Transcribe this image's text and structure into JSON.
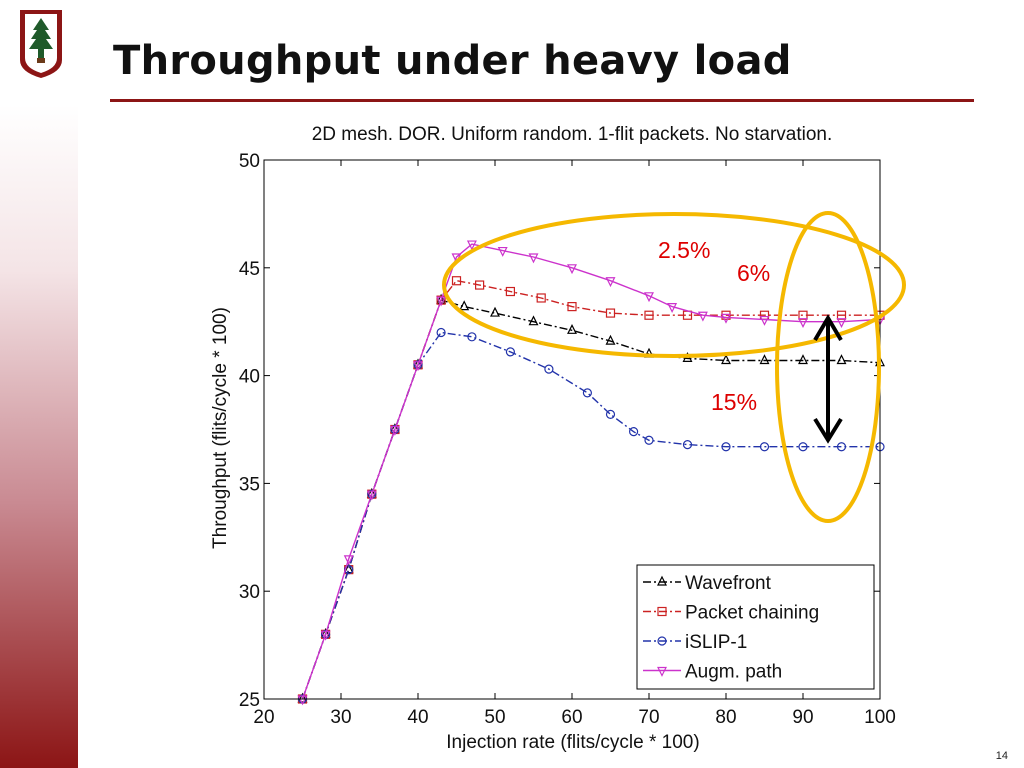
{
  "slide": {
    "title": "Throughput under heavy load",
    "page_number": "14"
  },
  "chart_data": {
    "type": "line",
    "title": "2D mesh. DOR. Uniform random. 1-flit packets. No starvation.",
    "xlabel": "Injection rate (flits/cycle * 100)",
    "ylabel": "Throughput (flits/cycle * 100)",
    "xlim": [
      20,
      100
    ],
    "ylim": [
      25,
      50
    ],
    "xticks": [
      20,
      30,
      40,
      50,
      60,
      70,
      80,
      90,
      100
    ],
    "yticks": [
      25,
      30,
      35,
      40,
      45,
      50
    ],
    "legend_position": "bottom-right",
    "series": [
      {
        "name": "Wavefront",
        "color": "#000000",
        "dash": "8,3,2,3",
        "marker": "triangle-up",
        "x": [
          25,
          28,
          31,
          34,
          37,
          40,
          43,
          46,
          50,
          55,
          60,
          65,
          70,
          75,
          80,
          85,
          90,
          95,
          100
        ],
        "y": [
          25,
          28,
          31,
          34.5,
          37.5,
          40.5,
          43.5,
          43.2,
          42.9,
          42.5,
          42.1,
          41.6,
          41.0,
          40.8,
          40.7,
          40.7,
          40.7,
          40.7,
          40.6
        ]
      },
      {
        "name": "Packet chaining",
        "color": "#cc2222",
        "dash": "8,3,2,3",
        "marker": "square",
        "x": [
          25,
          28,
          31,
          34,
          37,
          40,
          43,
          45,
          48,
          52,
          56,
          60,
          65,
          70,
          75,
          80,
          85,
          90,
          95,
          100
        ],
        "y": [
          25,
          28,
          31,
          34.5,
          37.5,
          40.5,
          43.5,
          44.4,
          44.2,
          43.9,
          43.6,
          43.2,
          42.9,
          42.8,
          42.8,
          42.8,
          42.8,
          42.8,
          42.8,
          42.8
        ]
      },
      {
        "name": "iSLIP-1",
        "color": "#2233aa",
        "dash": "8,3,2,3",
        "marker": "circle",
        "x": [
          25,
          28,
          31,
          34,
          37,
          40,
          43,
          47,
          52,
          57,
          62,
          65,
          68,
          70,
          75,
          80,
          85,
          90,
          95,
          100
        ],
        "y": [
          25,
          28,
          31,
          34.5,
          37.5,
          40.5,
          42.0,
          41.8,
          41.1,
          40.3,
          39.2,
          38.2,
          37.4,
          37.0,
          36.8,
          36.7,
          36.7,
          36.7,
          36.7,
          36.7
        ]
      },
      {
        "name": "Augm. path",
        "color": "#cc33cc",
        "dash": "",
        "marker": "triangle-down",
        "x": [
          25,
          28,
          31,
          34,
          37,
          40,
          43,
          45,
          47,
          51,
          55,
          60,
          65,
          70,
          73,
          77,
          80,
          85,
          90,
          95,
          100
        ],
        "y": [
          25,
          28,
          31.5,
          34.5,
          37.5,
          40.5,
          43.5,
          45.5,
          46.1,
          45.8,
          45.5,
          45.0,
          44.4,
          43.7,
          43.2,
          42.8,
          42.7,
          42.6,
          42.5,
          42.5,
          42.6
        ]
      }
    ],
    "annotations": [
      {
        "text": "2.5%",
        "color": "#dd0000"
      },
      {
        "text": "6%",
        "color": "#dd0000"
      },
      {
        "text": "15%",
        "color": "#dd0000"
      }
    ],
    "highlight_color": "#f5b800"
  }
}
